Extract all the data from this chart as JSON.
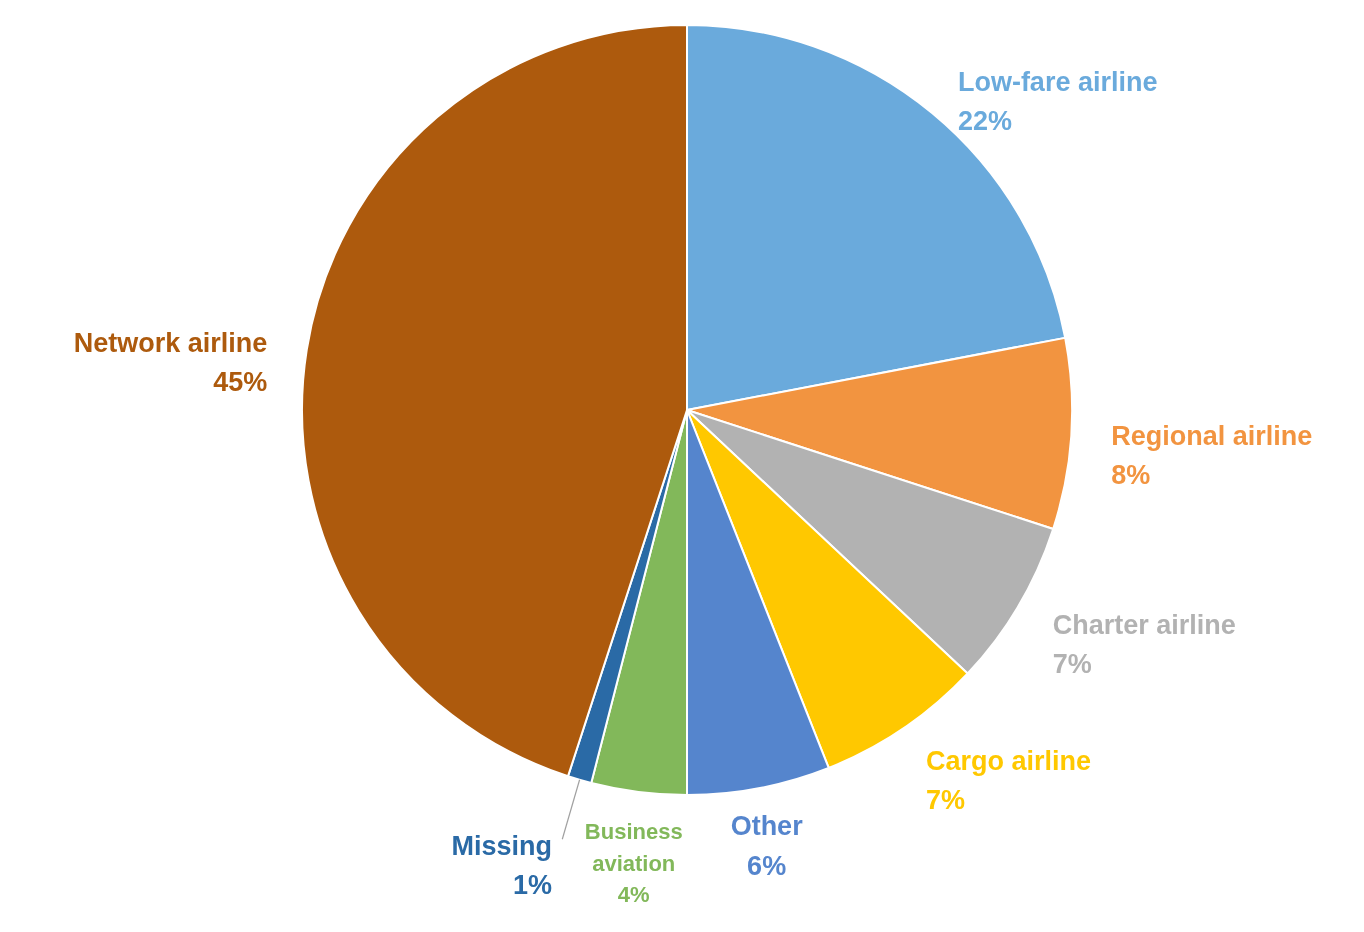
{
  "chart_data": {
    "type": "pie",
    "categories": [
      "Low-fare airline",
      "Regional airline",
      "Charter airline",
      "Cargo airline",
      "Other",
      "Business aviation",
      "Missing",
      "Network airline"
    ],
    "values": [
      22,
      8,
      7,
      7,
      6,
      4,
      1,
      45
    ],
    "value_labels": [
      "22%",
      "8%",
      "7%",
      "7%",
      "6%",
      "4%",
      "1%",
      "45%"
    ],
    "colors": [
      "#6aaadc",
      "#f29440",
      "#b2b2b2",
      "#ffc800",
      "#5585cd",
      "#82b85a",
      "#2a6aa6",
      "#ad5a0d"
    ]
  }
}
